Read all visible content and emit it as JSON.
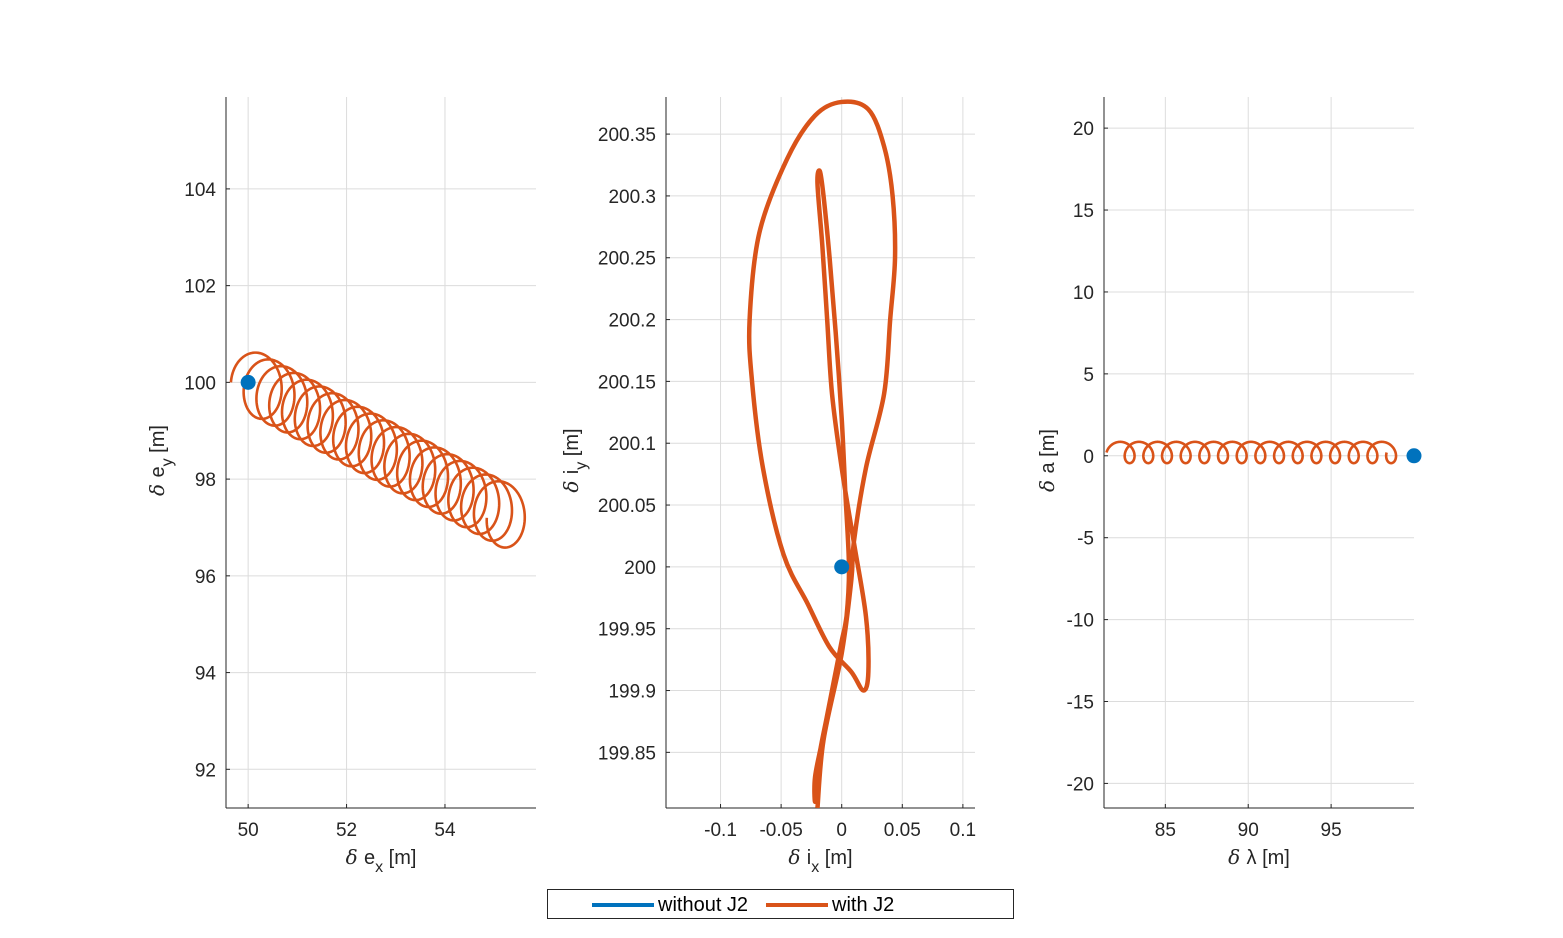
{
  "chart_data": [
    {
      "type": "line",
      "xlabel": {
        "delta": "δ",
        "main": "e",
        "sub": "x",
        "unit": "[m]"
      },
      "ylabel": {
        "delta": "δ",
        "main": "e",
        "sub": "y",
        "unit": "[m]"
      },
      "xlim": [
        49.55,
        55.85
      ],
      "ylim": [
        91.2,
        105.9
      ],
      "xticks": [
        50,
        52,
        54
      ],
      "yticks": [
        92,
        94,
        96,
        98,
        100,
        102,
        104
      ],
      "grid": true,
      "series": [
        {
          "name": "without J2",
          "color": "#0072BD",
          "kind": "point",
          "x": [
            50
          ],
          "y": [
            100
          ]
        },
        {
          "name": "with J2",
          "color": "#D95319",
          "kind": "loops",
          "center_start": [
            50.1,
            100.0
          ],
          "center_end": [
            55.3,
            97.2
          ],
          "loops": 20,
          "radius_x": 0.45,
          "radius_y": 0.65
        }
      ]
    },
    {
      "type": "line",
      "xlabel": {
        "delta": "δ",
        "main": "i",
        "sub": "x",
        "unit": "[m]"
      },
      "ylabel": {
        "delta": "δ",
        "main": "i",
        "sub": "y",
        "unit": "[m]"
      },
      "xlim": [
        -0.145,
        0.11
      ],
      "ylim": [
        199.805,
        200.38
      ],
      "xticks": [
        -0.1,
        -0.05,
        0,
        0.05,
        0.1
      ],
      "yticks": [
        199.85,
        199.9,
        199.95,
        200,
        200.05,
        200.1,
        200.15,
        200.2,
        200.25,
        200.3,
        200.35
      ],
      "grid": true,
      "series": [
        {
          "name": "without J2",
          "color": "#0072BD",
          "kind": "point",
          "x": [
            0
          ],
          "y": [
            200
          ]
        },
        {
          "name": "with J2",
          "color": "#D95319",
          "kind": "path",
          "x": [
            -0.02,
            -0.015,
            0.0,
            0.008,
            0.01,
            0.02,
            0.035,
            0.04,
            0.044,
            0.042,
            0.035,
            0.022,
            0.0,
            -0.022,
            -0.045,
            -0.068,
            -0.076,
            -0.074,
            -0.065,
            -0.048,
            -0.028,
            -0.01,
            0.008,
            0.018,
            0.022,
            0.02,
            0.01,
            0.0,
            -0.008,
            -0.012,
            -0.016,
            -0.02,
            -0.018,
            -0.015,
            -0.01,
            -0.005,
            0.0,
            0.003,
            0.006,
            0.004,
            0.0,
            -0.008,
            -0.016,
            -0.022,
            -0.022,
            -0.02,
            -0.018,
            -0.012,
            -0.004,
            0.004,
            0.01
          ],
          "y": [
            199.805,
            199.86,
            199.93,
            199.99,
            200.02,
            200.08,
            200.14,
            200.2,
            200.25,
            200.3,
            200.34,
            200.37,
            200.376,
            200.365,
            200.33,
            200.27,
            200.2,
            200.15,
            200.08,
            200.01,
            199.97,
            199.935,
            199.915,
            199.9,
            199.915,
            199.96,
            200.02,
            200.08,
            200.14,
            200.2,
            200.26,
            200.31,
            200.32,
            200.3,
            200.25,
            200.19,
            200.12,
            200.06,
            200.0,
            199.96,
            199.94,
            199.9,
            199.86,
            199.83,
            199.81,
            199.83,
            199.85,
            199.88,
            199.92,
            199.96,
            200.02
          ]
        }
      ]
    },
    {
      "type": "line",
      "xlabel": {
        "delta": "δ",
        "main": "λ",
        "sub": "",
        "unit": "[m]"
      },
      "ylabel": {
        "delta": "δ",
        "main": "a",
        "sub": "",
        "unit": "[m]"
      },
      "xlim": [
        81.3,
        100.0
      ],
      "ylim": [
        -21.5,
        21.9
      ],
      "xticks": [
        85,
        90,
        95
      ],
      "yticks": [
        -20,
        -15,
        -10,
        -5,
        0,
        5,
        10,
        15,
        20
      ],
      "grid": true,
      "series": [
        {
          "name": "without J2",
          "color": "#0072BD",
          "kind": "point",
          "x": [
            100
          ],
          "y": [
            0
          ]
        },
        {
          "name": "with J2",
          "color": "#D95319",
          "kind": "loops",
          "center_start": [
            82.0,
            0.2
          ],
          "center_end": [
            98.9,
            0.2
          ],
          "loops": 15,
          "radius_x": 0.55,
          "radius_y": 0.65
        }
      ]
    }
  ],
  "legend": [
    {
      "label": "without J2",
      "color": "#0072BD"
    },
    {
      "label": "with J2",
      "color": "#D95319"
    }
  ]
}
